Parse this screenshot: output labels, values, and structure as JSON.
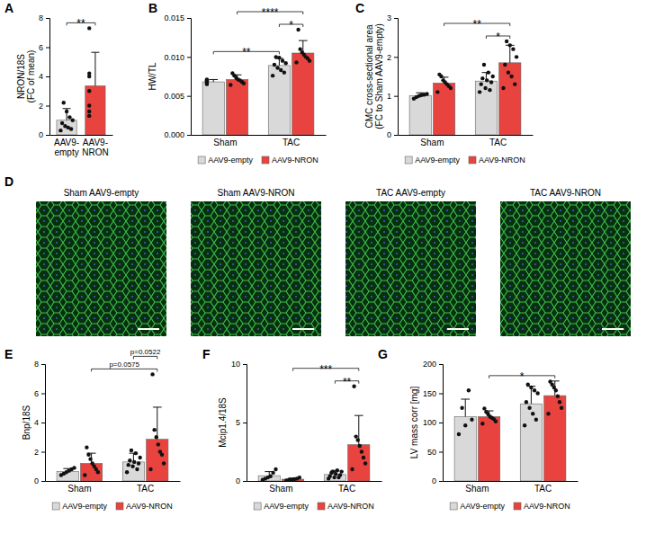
{
  "chart_data": [
    {
      "type": "bar",
      "label": "A",
      "y_label": [
        "NRON/18S",
        "(FC of mean)"
      ],
      "categories": [
        "AAV9-empty",
        "AAV9-NRON"
      ],
      "colors": [
        "#d9d9d9",
        "#e8433f"
      ],
      "values": [
        1.0,
        3.35
      ],
      "errors": [
        0.8,
        2.3
      ],
      "points": [
        [
          0.3,
          0.4,
          0.5,
          0.6,
          0.8,
          1.0,
          1.2,
          1.6,
          2.2
        ],
        [
          1.3,
          1.6,
          2.0,
          3.0,
          4.0,
          4.2,
          7.3
        ]
      ],
      "ylim": [
        0,
        8
      ],
      "yticks": [
        0,
        2,
        4,
        6,
        8
      ],
      "annotations": [
        {
          "text": "**",
          "from": 0,
          "to": 1
        }
      ]
    },
    {
      "type": "bar",
      "label": "B",
      "y_label": [
        "HW/TL"
      ],
      "categories": [
        "Sham",
        "TAC"
      ],
      "legend": "bottom",
      "series": [
        {
          "name": "AAV9-empty",
          "color": "#d9d9d9",
          "values": [
            0.0068,
            0.0089
          ],
          "errors": [
            0.0003,
            0.0009
          ],
          "points": [
            [
              0.0065,
              0.0066,
              0.0067,
              0.0068,
              0.0069,
              0.007,
              0.0071
            ],
            [
              0.0076,
              0.008,
              0.0083,
              0.0086,
              0.009,
              0.0092,
              0.0095,
              0.0099,
              0.01
            ]
          ]
        },
        {
          "name": "AAV9-NRON",
          "color": "#e8433f",
          "values": [
            0.0071,
            0.0105
          ],
          "errors": [
            0.0006,
            0.0016
          ],
          "points": [
            [
              0.0064,
              0.0066,
              0.0068,
              0.007,
              0.0071,
              0.0073,
              0.0076,
              0.0079
            ],
            [
              0.0093,
              0.0095,
              0.0098,
              0.01,
              0.0103,
              0.0106,
              0.011,
              0.0135
            ]
          ]
        }
      ],
      "ylim": [
        0,
        0.015
      ],
      "yticks": [
        {
          "value": 0,
          "label": "0.000"
        },
        {
          "value": 0.005,
          "label": "0.005"
        },
        {
          "value": 0.01,
          "label": "0.010"
        },
        {
          "value": 0.015,
          "label": "0.015"
        }
      ],
      "annotations": [
        {
          "text": "**",
          "from": 0,
          "to": 2
        },
        {
          "text": "*",
          "from": 2,
          "to": 3
        },
        {
          "text": "****",
          "from": 1,
          "to": 3
        }
      ]
    },
    {
      "type": "bar",
      "label": "C",
      "y_label": [
        "CMC cross-sectional area",
        "(FC to Sham AAV9-empty)"
      ],
      "categories": [
        "Sham",
        "TAC"
      ],
      "legend": "bottom",
      "series": [
        {
          "name": "AAV9-empty",
          "color": "#d9d9d9",
          "values": [
            1.0,
            1.38
          ],
          "errors": [
            0.08,
            0.22
          ],
          "points": [
            [
              0.93,
              0.97,
              1.0,
              1.02,
              1.03,
              1.05
            ],
            [
              1.1,
              1.15,
              1.2,
              1.3,
              1.35,
              1.4,
              1.45,
              1.5,
              1.6,
              1.8
            ]
          ]
        },
        {
          "name": "AAV9-NRON",
          "color": "#e8433f",
          "values": [
            1.33,
            1.85
          ],
          "errors": [
            0.15,
            0.45
          ],
          "points": [
            [
              1.1,
              1.2,
              1.25,
              1.3,
              1.35,
              1.4,
              1.5,
              1.55
            ],
            [
              1.2,
              1.3,
              1.5,
              1.6,
              1.8,
              2.0,
              2.2,
              2.3,
              2.4
            ]
          ]
        }
      ],
      "ylim": [
        0,
        3
      ],
      "yticks": [
        0,
        1,
        2,
        3
      ],
      "annotations": [
        {
          "text": "*",
          "from": 2,
          "to": 3
        },
        {
          "text": "**",
          "from": 1,
          "to": 3
        }
      ]
    },
    {
      "type": "bar",
      "label": "E",
      "y_label": [
        "Bnp/18S"
      ],
      "categories": [
        "Sham",
        "TAC"
      ],
      "legend": "bottom",
      "series": [
        {
          "name": "AAV9-empty",
          "color": "#d9d9d9",
          "values": [
            0.65,
            1.3
          ],
          "errors": [
            0.2,
            0.6
          ],
          "points": [
            [
              0.4,
              0.5,
              0.6,
              0.7,
              0.8,
              0.9
            ],
            [
              0.6,
              0.8,
              1.0,
              1.1,
              1.2,
              1.3,
              1.4,
              1.6,
              1.9,
              2.1
            ]
          ]
        },
        {
          "name": "AAV9-NRON",
          "color": "#e8433f",
          "values": [
            1.2,
            2.85
          ],
          "errors": [
            0.7,
            2.2
          ],
          "points": [
            [
              0.4,
              0.6,
              0.8,
              1.0,
              1.2,
              1.5,
              1.8,
              2.3
            ],
            [
              0.8,
              1.2,
              1.8,
              2.0,
              2.5,
              3.0,
              3.5,
              7.3
            ]
          ]
        }
      ],
      "ylim": [
        0,
        8
      ],
      "yticks": [
        0,
        2,
        4,
        6,
        8
      ],
      "annotations": [
        {
          "text": "p=0.0575",
          "from": 1,
          "to": 3
        },
        {
          "text": "p=0.0522",
          "from": 2,
          "to": 3
        }
      ]
    },
    {
      "type": "bar",
      "label": "F",
      "y_label": [
        "Mcip1.4/18S"
      ],
      "categories": [
        "Sham",
        "TAC"
      ],
      "legend": "bottom",
      "series": [
        {
          "name": "AAV9-empty",
          "color": "#d9d9d9",
          "values": [
            0.45,
            0.55
          ],
          "errors": [
            0.35,
            0.35
          ],
          "points": [
            [
              0.1,
              0.2,
              0.3,
              0.4,
              0.7,
              1.0
            ],
            [
              0.2,
              0.3,
              0.3,
              0.4,
              0.5,
              0.6,
              0.7,
              0.8,
              0.9,
              0.8
            ]
          ]
        },
        {
          "name": "AAV9-NRON",
          "color": "#e8433f",
          "values": [
            0.15,
            3.1
          ],
          "errors": [
            0.1,
            2.5
          ],
          "points": [
            [
              0.05,
              0.1,
              0.1,
              0.15,
              0.2,
              0.3
            ],
            [
              1.0,
              1.5,
              2.0,
              2.5,
              3.0,
              3.5,
              3.8,
              8.1
            ]
          ]
        }
      ],
      "ylim": [
        0,
        10
      ],
      "yticks": [
        0,
        5,
        10
      ],
      "annotations": [
        {
          "text": "**",
          "from": 2,
          "to": 3
        },
        {
          "text": "***",
          "from": 1,
          "to": 3
        }
      ]
    },
    {
      "type": "bar",
      "label": "G",
      "y_label": [
        "LV mass corr [mg]"
      ],
      "categories": [
        "Sham",
        "TAC"
      ],
      "legend": "bottom",
      "series": [
        {
          "name": "AAV9-empty",
          "color": "#d9d9d9",
          "values": [
            110,
            132
          ],
          "errors": [
            30,
            30
          ],
          "points": [
            [
              80,
              95,
              105,
              125,
              155
            ],
            [
              95,
              105,
              115,
              125,
              135,
              150,
              155,
              160,
              165
            ]
          ]
        },
        {
          "name": "AAV9-NRON",
          "color": "#e8433f",
          "values": [
            110,
            146
          ],
          "errors": [
            10,
            25
          ],
          "points": [
            [
              98,
              102,
              106,
              108,
              110,
              114,
              118,
              124
            ],
            [
              115,
              125,
              135,
              145,
              155,
              160,
              165,
              170
            ]
          ]
        }
      ],
      "ylim": [
        0,
        200
      ],
      "yticks": [
        0,
        50,
        100,
        150,
        200
      ],
      "annotations": [
        {
          "text": "*",
          "from": 1,
          "to": 3
        }
      ]
    }
  ],
  "image_panel": {
    "label": "D",
    "titles": [
      "Sham AAV9-empty",
      "Sham AAV9-NRON",
      "TAC AAV9-empty",
      "TAC AAV9-NRON"
    ]
  }
}
